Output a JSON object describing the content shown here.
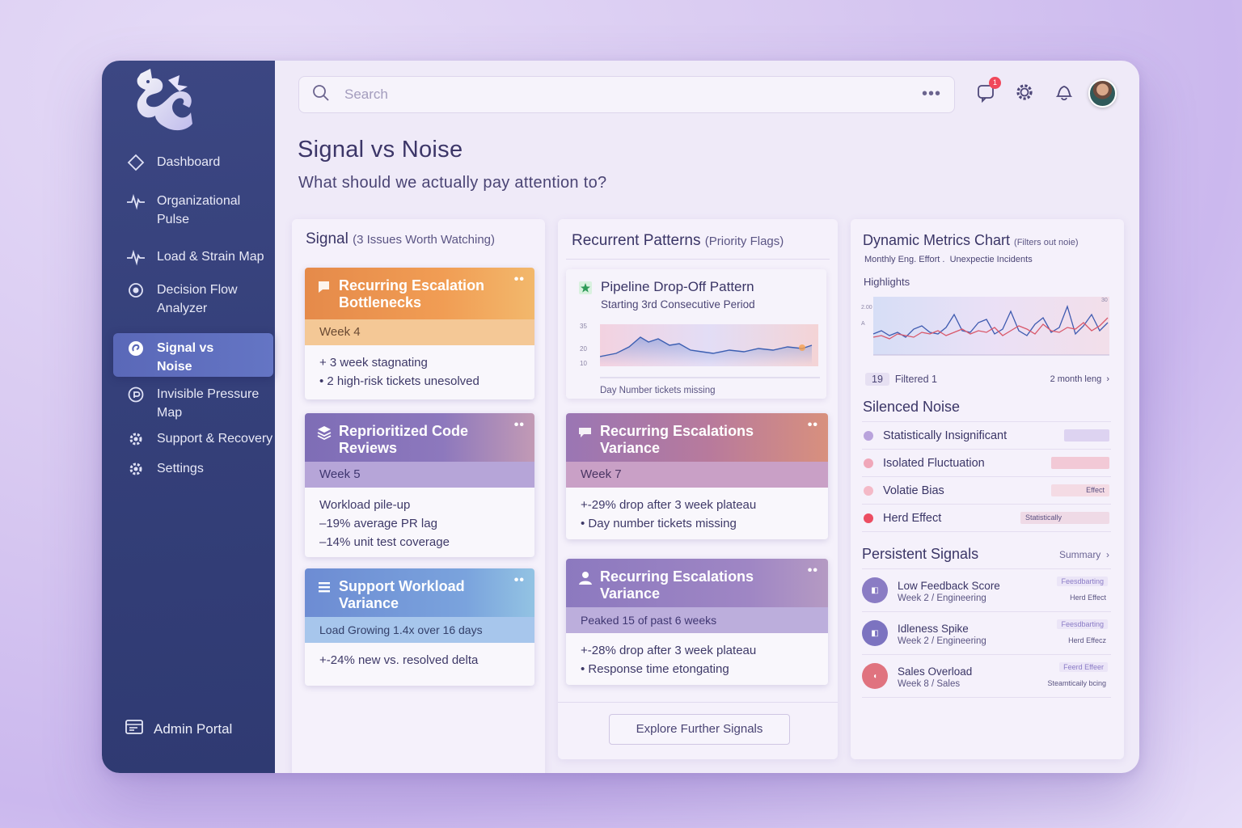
{
  "sidebar": {
    "items": [
      {
        "label": "Dashboard"
      },
      {
        "label": "Organizational Pulse"
      },
      {
        "label": "Load & Strain Map"
      },
      {
        "label": "Decision Flow Analyzer"
      },
      {
        "label": "Signal vs Noise"
      },
      {
        "label": "Invisible Pressure Map"
      },
      {
        "label": "Support & Recovery"
      },
      {
        "label": "Settings"
      }
    ],
    "admin_label": "Admin Portal"
  },
  "topbar": {
    "search_placeholder": "Search",
    "more": "•••",
    "notification_count": "1"
  },
  "page": {
    "title": "Signal vs Noise",
    "subtitle": "What should we actually pay attention to?"
  },
  "signal": {
    "heading": "Signal",
    "heading_note": "(3 Issues Worth Watching)",
    "cards": [
      {
        "title": "Recurring Escalation Bottlenecks",
        "band": "Week 4",
        "lines": [
          "+ 3 week stagnating",
          "• 2 high-risk tickets unesolved"
        ]
      },
      {
        "title": "Reprioritized Code Reviews",
        "band": "Week 5",
        "lines": [
          "Workload pile-up",
          "–19% average PR lag",
          "–14% unit test coverage"
        ]
      },
      {
        "title": "Support Workload Variance",
        "band": "Load Growing 1.4x over 16 days",
        "lines": [
          "+-24% new vs. resolved delta"
        ]
      }
    ]
  },
  "patterns": {
    "heading": "Recurrent Patterns",
    "heading_note": "(Priority Flags)",
    "pipeline": {
      "title": "Pipeline Drop-Off Pattern",
      "subtitle": "Starting 3rd Consecutive Period",
      "y_ticks": [
        "35",
        "20",
        "10"
      ],
      "footer": "Day Number tickets missing"
    },
    "cards": [
      {
        "title": "Recurring Escalations Variance",
        "band": "Week 7",
        "lines": [
          "+-29% drop after 3 week plateau",
          "• Day number tickets missing"
        ]
      },
      {
        "title": "Recurring Escalations Variance",
        "band": "Peaked 15 of past 6 weeks",
        "lines": [
          "+-28% drop after 3 week plateau",
          "• Response time etongating"
        ]
      }
    ],
    "explore_button": "Explore Further Signals"
  },
  "metrics": {
    "heading": "Dynamic Metrics Chart",
    "heading_note": "(Filters out noie)",
    "legend": [
      "Monthly Eng. Effort .",
      "Unexpectie Incidents"
    ],
    "chart_label": "Highlights",
    "y_ticks_left": [
      "2.00",
      "A"
    ],
    "y_ticks_right": [
      "30"
    ],
    "count": "19",
    "filtered": "Filtered 1",
    "range": "2 month leng",
    "colors": {
      "line_blue": "#3f5bb0",
      "line_red": "#d9586a",
      "line_light": "#8fb3e8"
    }
  },
  "chart_data": {
    "type": "line",
    "title": "Highlights",
    "xlabel": "",
    "ylabel": "",
    "x": [
      1,
      2,
      3,
      4,
      5,
      6,
      7,
      8,
      9,
      10,
      11,
      12,
      13,
      14,
      15,
      16,
      17,
      18,
      19,
      20,
      21,
      22,
      23,
      24,
      25,
      26,
      27,
      28,
      29,
      30
    ],
    "series": [
      {
        "name": "Monthly Eng. Effort",
        "values": [
          12,
          14,
          11,
          13,
          10,
          15,
          17,
          13,
          12,
          16,
          24,
          14,
          13,
          19,
          21,
          12,
          15,
          26,
          14,
          11,
          18,
          22,
          13,
          16,
          29,
          12,
          17,
          24,
          14,
          19
        ]
      },
      {
        "name": "Unexpectie Incidents",
        "values": [
          10,
          11,
          9,
          12,
          11,
          10,
          13,
          12,
          14,
          11,
          13,
          15,
          12,
          14,
          13,
          16,
          11,
          14,
          17,
          15,
          12,
          18,
          14,
          13,
          16,
          15,
          19,
          14,
          17,
          22
        ]
      }
    ],
    "ylim": [
      0,
      35
    ]
  },
  "silenced": {
    "heading": "Silenced Noise",
    "items": [
      {
        "label": "Statistically Insignificant",
        "tag": "",
        "color": "#b9a3dc"
      },
      {
        "label": "Isolated Fluctuation",
        "tag": "",
        "color": "#f0a7b9"
      },
      {
        "label": "Volatie Bias",
        "tag": "Effect",
        "color": "#f4b9c7"
      },
      {
        "label": "Herd Effect",
        "tag": "Statistically",
        "color": "#ec4d62"
      }
    ]
  },
  "persistent": {
    "heading": "Persistent Signals",
    "summary": "Summary",
    "items": [
      {
        "title": "Low Feedback Score",
        "sub": "Week 2 / Engineering",
        "tag1": "Feesdbarting",
        "tag2": "Herd Effect",
        "color": "#8a7cc4"
      },
      {
        "title": "Idleness Spike",
        "sub": "Week 2 / Engineering",
        "tag1": "Feesdbarting",
        "tag2": "Herd Effecz",
        "color": "#7c73c0"
      },
      {
        "title": "Sales Overload",
        "sub": "Week 8 / Sales",
        "tag1": "Feerd Effeer",
        "tag2": "Steamticaily bcing",
        "color": "#e0737f"
      }
    ]
  }
}
